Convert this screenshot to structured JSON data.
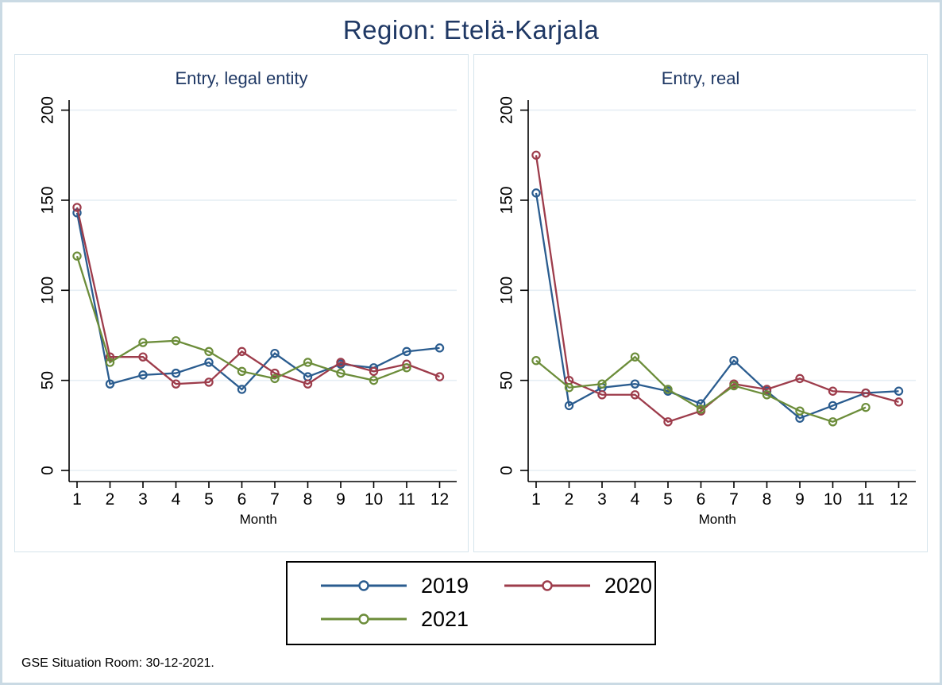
{
  "title": "Region: Etelä-Karjala",
  "footnote": "GSE Situation Room: 30-12-2021.",
  "colors": {
    "title_text": "#1f3864",
    "grid": "#e6eef4",
    "axis": "#000000"
  },
  "legend": [
    {
      "label": "2019",
      "color": "#2a5c8f"
    },
    {
      "label": "2020",
      "color": "#9d3c4b"
    },
    {
      "label": "2021",
      "color": "#6c8d3a"
    }
  ],
  "chart_data": [
    {
      "type": "line",
      "title": "Entry, legal entity",
      "xlabel": "Month",
      "x": [
        1,
        2,
        3,
        4,
        5,
        6,
        7,
        8,
        9,
        10,
        11,
        12
      ],
      "ylim": [
        0,
        200
      ],
      "yticks": [
        0,
        50,
        100,
        150,
        200
      ],
      "grid": "horizontal",
      "marker": "open-circle",
      "series": [
        {
          "name": "2019",
          "color": "#2a5c8f",
          "values": [
            143,
            48,
            53,
            54,
            60,
            45,
            65,
            52,
            59,
            57,
            66,
            68
          ]
        },
        {
          "name": "2020",
          "color": "#9d3c4b",
          "values": [
            146,
            63,
            63,
            48,
            49,
            66,
            54,
            48,
            60,
            55,
            59,
            52
          ]
        },
        {
          "name": "2021",
          "color": "#6c8d3a",
          "values": [
            119,
            60,
            71,
            72,
            66,
            55,
            51,
            60,
            54,
            50,
            57,
            null
          ]
        }
      ]
    },
    {
      "type": "line",
      "title": "Entry, real",
      "xlabel": "Month",
      "x": [
        1,
        2,
        3,
        4,
        5,
        6,
        7,
        8,
        9,
        10,
        11,
        12
      ],
      "ylim": [
        0,
        200
      ],
      "yticks": [
        0,
        50,
        100,
        150,
        200
      ],
      "grid": "horizontal",
      "marker": "open-circle",
      "series": [
        {
          "name": "2019",
          "color": "#2a5c8f",
          "values": [
            154,
            36,
            46,
            48,
            44,
            37,
            61,
            44,
            29,
            36,
            43,
            44
          ]
        },
        {
          "name": "2020",
          "color": "#9d3c4b",
          "values": [
            175,
            50,
            42,
            42,
            27,
            33,
            48,
            45,
            51,
            44,
            43,
            38
          ]
        },
        {
          "name": "2021",
          "color": "#6c8d3a",
          "values": [
            61,
            46,
            48,
            63,
            45,
            34,
            47,
            42,
            33,
            27,
            35,
            null
          ]
        }
      ]
    }
  ],
  "legend_position": "bottom-center"
}
